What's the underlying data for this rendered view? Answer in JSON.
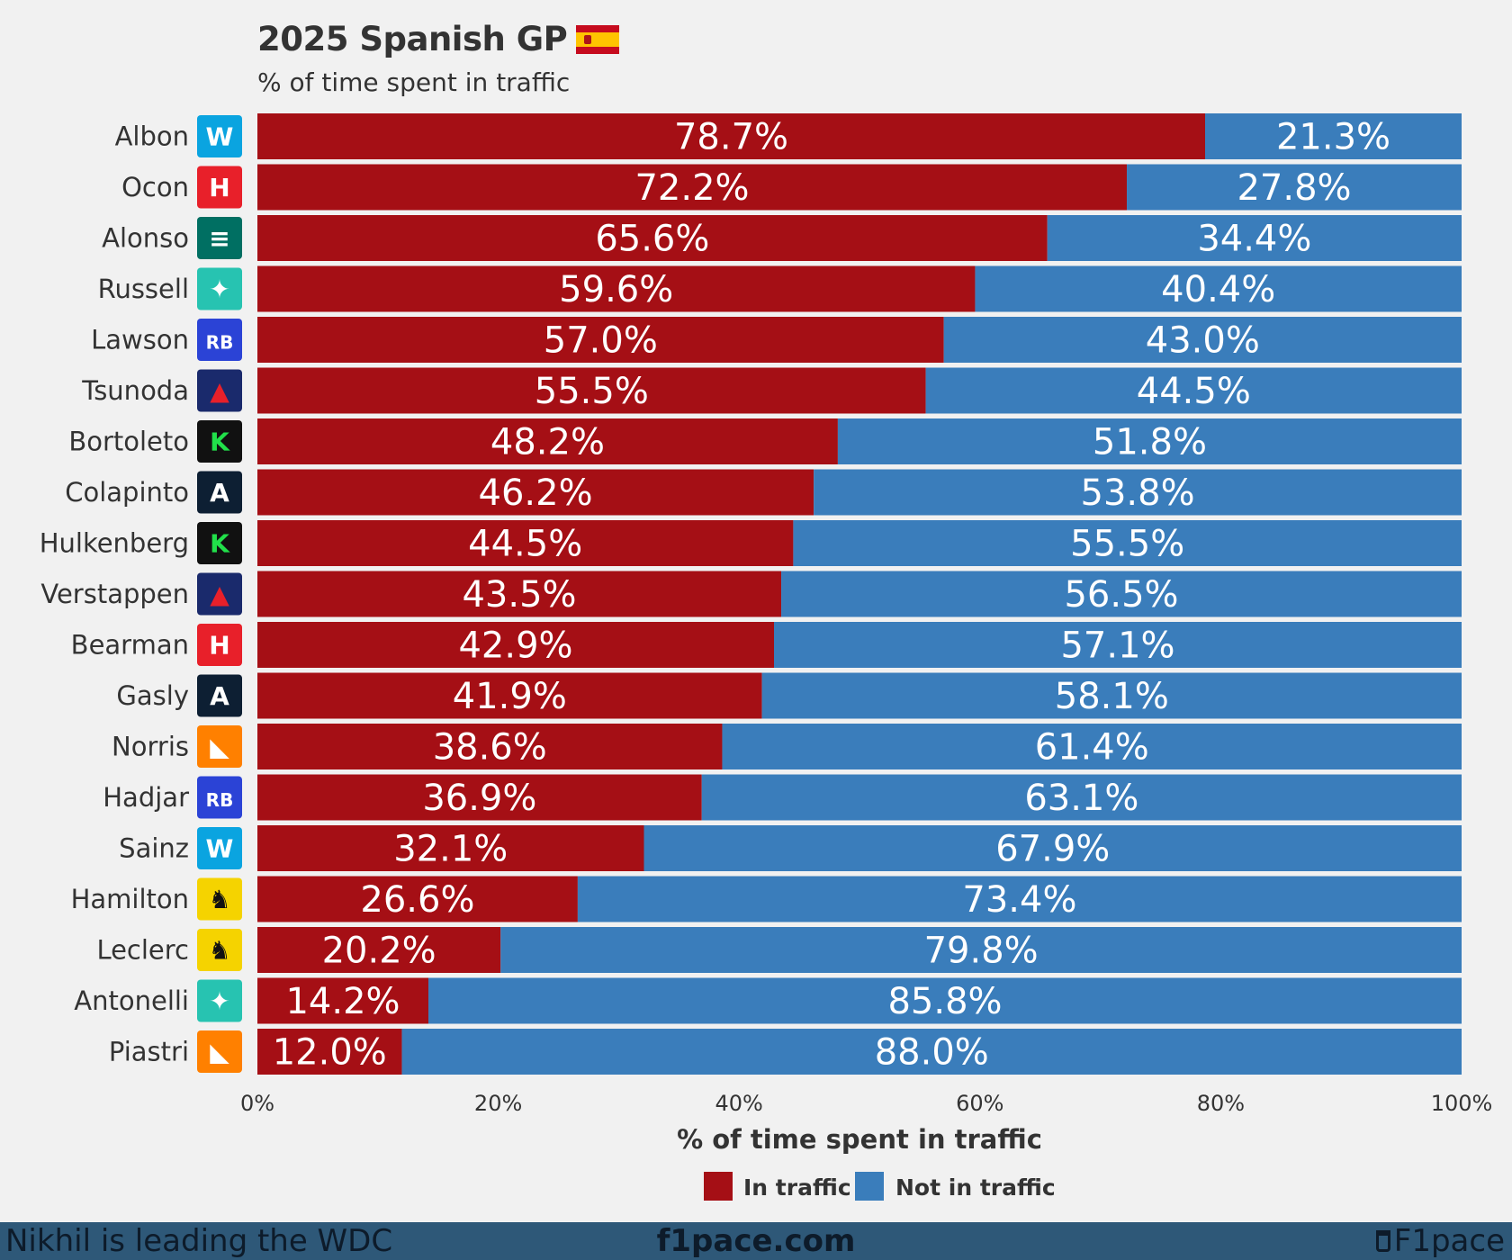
{
  "header": {
    "title": "2025 Spanish GP",
    "subtitle": "% of time spent in traffic"
  },
  "chart_data": {
    "type": "bar",
    "orientation": "horizontal",
    "stacked": true,
    "categories": [
      "Albon",
      "Ocon",
      "Alonso",
      "Russell",
      "Lawson",
      "Tsunoda",
      "Bortoleto",
      "Colapinto",
      "Hulkenberg",
      "Verstappen",
      "Bearman",
      "Gasly",
      "Norris",
      "Hadjar",
      "Sainz",
      "Hamilton",
      "Leclerc",
      "Antonelli",
      "Piastri"
    ],
    "teams": [
      "williams",
      "haas",
      "aston-martin",
      "mercedes",
      "racing-bulls",
      "red-bull",
      "sauber",
      "alpine",
      "sauber",
      "red-bull",
      "haas",
      "alpine",
      "mclaren",
      "racing-bulls",
      "williams",
      "ferrari",
      "ferrari",
      "mercedes",
      "mclaren"
    ],
    "series": [
      {
        "name": "In traffic",
        "color": "#a50f15",
        "values": [
          78.7,
          72.2,
          65.6,
          59.6,
          57.0,
          55.5,
          48.2,
          46.2,
          44.5,
          43.5,
          42.9,
          41.9,
          38.6,
          36.9,
          32.1,
          26.6,
          20.2,
          14.2,
          12.0
        ]
      },
      {
        "name": "Not in traffic",
        "color": "#3a7dbb",
        "values": [
          21.3,
          27.8,
          34.4,
          40.4,
          43.0,
          44.5,
          51.8,
          53.8,
          55.5,
          56.5,
          57.1,
          58.1,
          61.4,
          63.1,
          67.9,
          73.4,
          79.8,
          85.8,
          88.0
        ]
      }
    ],
    "xlim": [
      0,
      100
    ],
    "xticks": [
      "0%",
      "20%",
      "40%",
      "60%",
      "80%",
      "100%"
    ],
    "xlabel": "% of time spent in traffic",
    "legend": [
      "In traffic",
      "Not in traffic"
    ],
    "legend_position": "bottom"
  },
  "footer": {
    "left": "Nikhil is leading the WDC",
    "center": "f1pace.com",
    "right": "F1pace"
  }
}
